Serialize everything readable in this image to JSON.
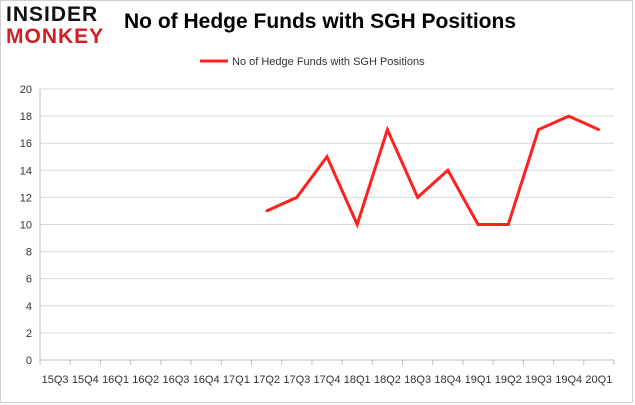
{
  "logo": {
    "line1": "INSIDER",
    "line2": "MONKEY"
  },
  "colors": {
    "line": "#ff2020",
    "grid": "#d9d9d9",
    "axis": "#bfbfbf"
  },
  "chart_data": {
    "type": "line",
    "title": "No of Hedge Funds with SGH Positions",
    "legend": "No of Hedge Funds with SGH Positions",
    "legend_position": "top-center",
    "categories": [
      "15Q3",
      "15Q4",
      "16Q1",
      "16Q2",
      "16Q3",
      "16Q4",
      "17Q1",
      "17Q2",
      "17Q3",
      "17Q4",
      "18Q1",
      "18Q2",
      "18Q3",
      "18Q4",
      "19Q1",
      "19Q2",
      "19Q3",
      "19Q4",
      "20Q1"
    ],
    "series": [
      {
        "name": "No of Hedge Funds with SGH Positions",
        "values": [
          null,
          null,
          null,
          null,
          null,
          null,
          null,
          11,
          12,
          15,
          10,
          17,
          12,
          14,
          10,
          10,
          17,
          18,
          17
        ]
      }
    ],
    "ylim": [
      0,
      20
    ],
    "yticks": [
      0,
      2,
      4,
      6,
      8,
      10,
      12,
      14,
      16,
      18,
      20
    ],
    "grid": true,
    "xlabel": "",
    "ylabel": ""
  }
}
